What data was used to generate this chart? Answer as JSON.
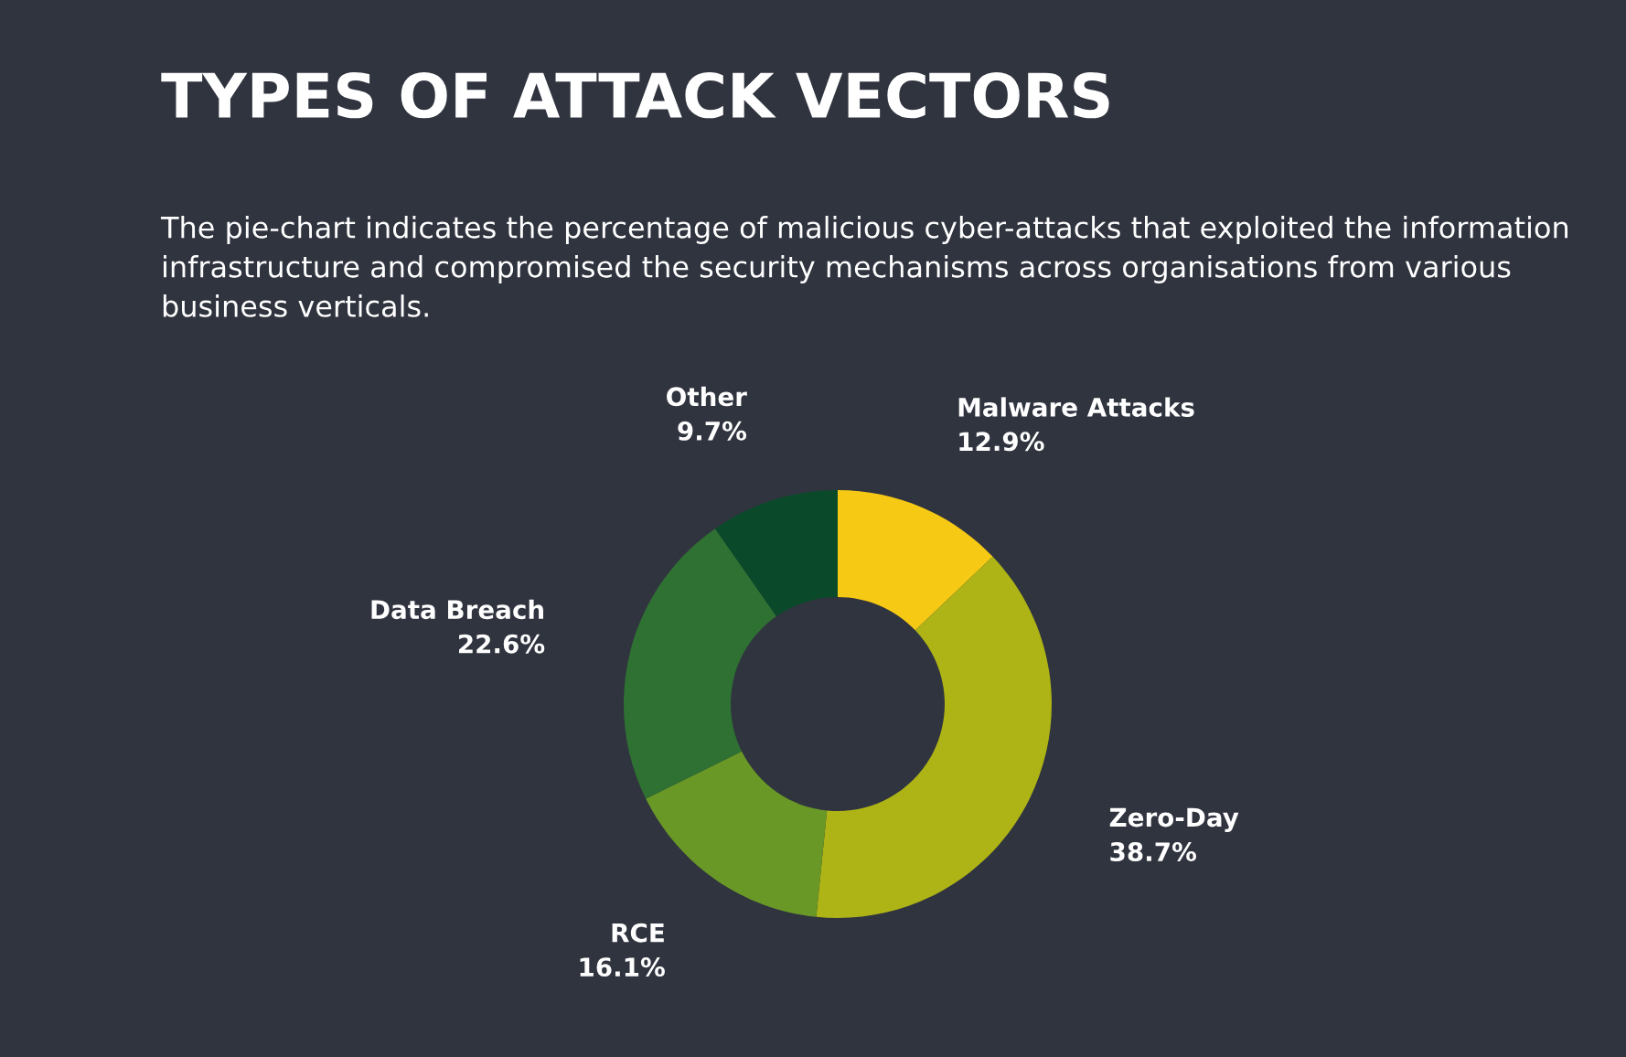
{
  "chart_data": {
    "type": "donut",
    "title": "TYPES OF ATTACK VECTORS",
    "subtitle": "The pie-chart indicates the percentage of malicious cyber-attacks that exploited the information infrastructure and compromised the security mechanisms across organisations from various business verticals.",
    "categories": [
      "Malware Attacks",
      "Zero-Day",
      "RCE",
      "Data Breach",
      "Other"
    ],
    "values": [
      12.9,
      38.7,
      16.1,
      22.6,
      9.7
    ],
    "colors": [
      "#f6c915",
      "#aeb416",
      "#6a9826",
      "#2f7132",
      "#0a4a2b"
    ],
    "value_labels": [
      "12.9%",
      "38.7%",
      "16.1%",
      "22.6%",
      "9.7%"
    ],
    "legend": false
  }
}
